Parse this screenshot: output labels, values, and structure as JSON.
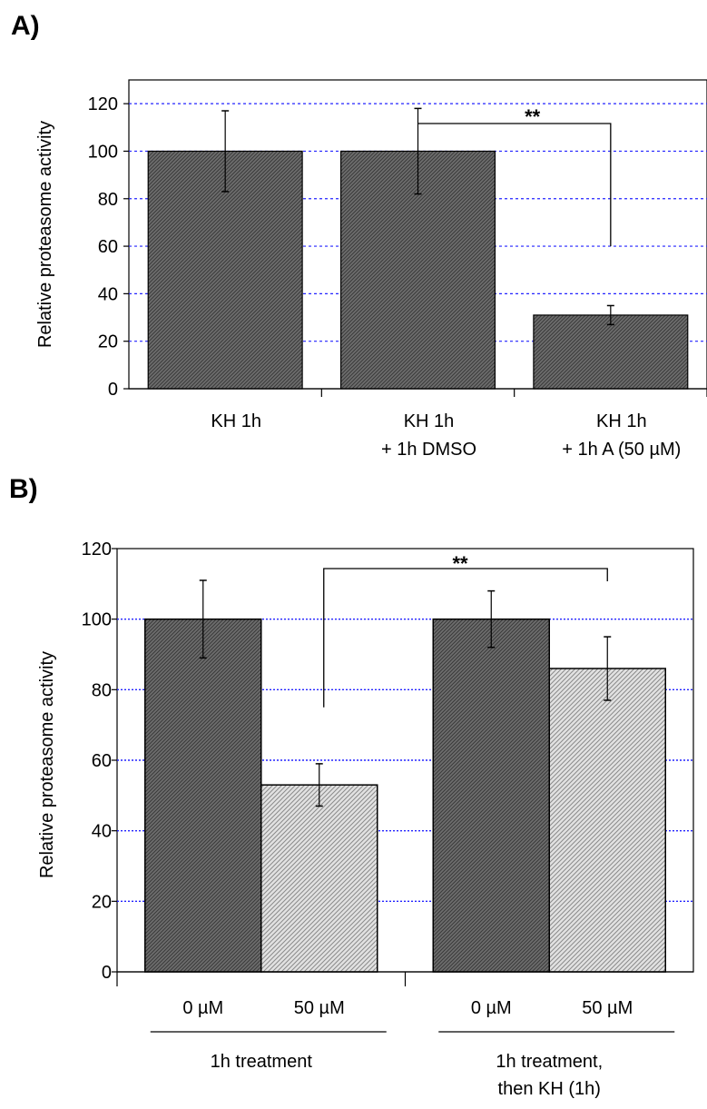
{
  "panels": {
    "a_label": "A)",
    "b_label": "B)"
  },
  "chart_data": [
    {
      "type": "bar",
      "panel": "A)",
      "categories": [
        [
          "KH 1h"
        ],
        [
          "KH 1h",
          "+ 1h DMSO"
        ],
        [
          "KH 1h",
          "+ 1h A (50 µM)"
        ]
      ],
      "values": [
        100,
        100,
        31
      ],
      "errors": [
        17,
        18,
        4
      ],
      "ylabel": "Relative proteasome activity",
      "ylim": [
        0,
        130
      ],
      "yticks": [
        "0",
        "20",
        "40",
        "60",
        "80",
        "100",
        "120"
      ],
      "grid": true,
      "annotations": [
        {
          "text": "**",
          "from": 1,
          "to": 2
        }
      ]
    },
    {
      "type": "bar",
      "panel": "B)",
      "groups": [
        {
          "label": [
            "1h treatment"
          ],
          "categories": [
            "0 µM",
            "50 µM"
          ],
          "values": [
            100,
            53
          ],
          "errors": [
            11,
            6
          ]
        },
        {
          "label": [
            "1h treatment,",
            "then KH (1h)"
          ],
          "categories": [
            "0 µM",
            "50 µM"
          ],
          "values": [
            100,
            86
          ],
          "errors": [
            8,
            9
          ]
        }
      ],
      "ylabel": "Relative proteasome activity",
      "ylim": [
        0,
        120
      ],
      "yticks": [
        "0",
        "20",
        "40",
        "60",
        "80",
        "100",
        "120"
      ],
      "grid": true,
      "annotations": [
        {
          "text": "**",
          "from": 1,
          "to": 3
        }
      ]
    }
  ]
}
